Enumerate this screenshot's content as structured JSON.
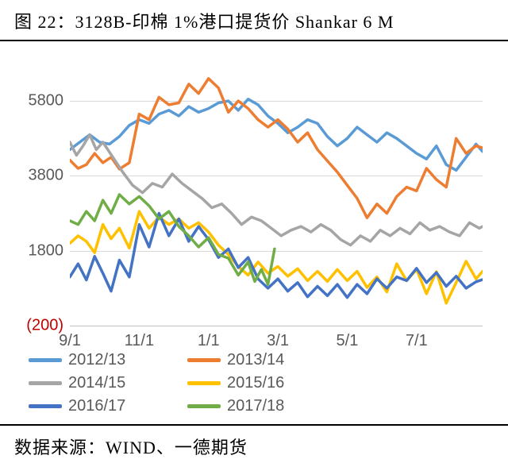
{
  "title": "图 22：3128B-印棉 1%港口提货价 Shankar 6 M",
  "source": "数据来源：WIND、一德期货",
  "chart": {
    "type": "line",
    "background_color": "#ffffff",
    "grid_color": "#d9d9d9",
    "axis_color": "#bfbfbf",
    "tick_fontsize": 20,
    "tick_color": "#595959",
    "neg_color": "#c00000",
    "line_width": 3.5,
    "ylim": [
      -200,
      6800
    ],
    "yticks": [
      {
        "v": -200,
        "label": "(200)",
        "neg": true
      },
      {
        "v": 1800,
        "label": "1800"
      },
      {
        "v": 3800,
        "label": "3800"
      },
      {
        "v": 5800,
        "label": "5800"
      }
    ],
    "xlim": [
      0,
      250
    ],
    "xticks": [
      {
        "v": 0,
        "label": "9/1"
      },
      {
        "v": 42,
        "label": "11/1"
      },
      {
        "v": 84,
        "label": "1/1"
      },
      {
        "v": 126,
        "label": "3/1"
      },
      {
        "v": 168,
        "label": "5/1"
      },
      {
        "v": 210,
        "label": "7/1"
      }
    ],
    "series": [
      {
        "name": "2012/13",
        "color": "#5b9bd5",
        "data": [
          [
            0,
            4500
          ],
          [
            6,
            4700
          ],
          [
            12,
            4900
          ],
          [
            18,
            4700
          ],
          [
            24,
            4650
          ],
          [
            30,
            4850
          ],
          [
            36,
            5150
          ],
          [
            42,
            5300
          ],
          [
            48,
            5200
          ],
          [
            54,
            5450
          ],
          [
            60,
            5550
          ],
          [
            66,
            5400
          ],
          [
            72,
            5650
          ],
          [
            78,
            5500
          ],
          [
            84,
            5600
          ],
          [
            90,
            5750
          ],
          [
            96,
            5800
          ],
          [
            102,
            5550
          ],
          [
            108,
            5850
          ],
          [
            114,
            5700
          ],
          [
            120,
            5400
          ],
          [
            126,
            5200
          ],
          [
            132,
            4950
          ],
          [
            138,
            5100
          ],
          [
            144,
            5300
          ],
          [
            150,
            5200
          ],
          [
            156,
            4850
          ],
          [
            162,
            4600
          ],
          [
            168,
            4800
          ],
          [
            174,
            5100
          ],
          [
            180,
            4900
          ],
          [
            186,
            4700
          ],
          [
            192,
            4950
          ],
          [
            198,
            4800
          ],
          [
            204,
            4600
          ],
          [
            210,
            4400
          ],
          [
            216,
            4250
          ],
          [
            222,
            4600
          ],
          [
            228,
            4100
          ],
          [
            234,
            3950
          ],
          [
            240,
            4300
          ],
          [
            246,
            4650
          ],
          [
            250,
            4450
          ]
        ]
      },
      {
        "name": "2013/14",
        "color": "#ed7d31",
        "data": [
          [
            0,
            4220
          ],
          [
            5,
            4000
          ],
          [
            10,
            4100
          ],
          [
            15,
            4400
          ],
          [
            20,
            4150
          ],
          [
            25,
            4300
          ],
          [
            30,
            3980
          ],
          [
            36,
            4150
          ],
          [
            42,
            5450
          ],
          [
            48,
            5300
          ],
          [
            54,
            5900
          ],
          [
            60,
            5700
          ],
          [
            66,
            5750
          ],
          [
            72,
            6250
          ],
          [
            78,
            6000
          ],
          [
            84,
            6400
          ],
          [
            90,
            6150
          ],
          [
            96,
            5500
          ],
          [
            102,
            5800
          ],
          [
            108,
            5600
          ],
          [
            114,
            5300
          ],
          [
            120,
            5100
          ],
          [
            126,
            5300
          ],
          [
            132,
            5050
          ],
          [
            138,
            4700
          ],
          [
            144,
            4950
          ],
          [
            150,
            4500
          ],
          [
            156,
            4200
          ],
          [
            162,
            3900
          ],
          [
            168,
            3550
          ],
          [
            174,
            3200
          ],
          [
            180,
            2680
          ],
          [
            186,
            3050
          ],
          [
            192,
            2800
          ],
          [
            198,
            3250
          ],
          [
            204,
            3500
          ],
          [
            210,
            3400
          ],
          [
            216,
            4000
          ],
          [
            222,
            3700
          ],
          [
            228,
            3500
          ],
          [
            234,
            4800
          ],
          [
            240,
            4400
          ],
          [
            246,
            4600
          ],
          [
            250,
            4550
          ]
        ]
      },
      {
        "name": "2014/15",
        "color": "#a5a5a5",
        "data": [
          [
            0,
            4700
          ],
          [
            4,
            4350
          ],
          [
            8,
            4600
          ],
          [
            12,
            4900
          ],
          [
            16,
            4500
          ],
          [
            20,
            4700
          ],
          [
            26,
            4300
          ],
          [
            32,
            3900
          ],
          [
            38,
            3550
          ],
          [
            44,
            3350
          ],
          [
            50,
            3600
          ],
          [
            56,
            3500
          ],
          [
            62,
            3850
          ],
          [
            68,
            3600
          ],
          [
            74,
            3400
          ],
          [
            80,
            3200
          ],
          [
            86,
            2950
          ],
          [
            92,
            3050
          ],
          [
            98,
            2800
          ],
          [
            104,
            2500
          ],
          [
            110,
            2700
          ],
          [
            116,
            2600
          ],
          [
            122,
            2400
          ],
          [
            128,
            2200
          ],
          [
            134,
            2350
          ],
          [
            140,
            2450
          ],
          [
            146,
            2300
          ],
          [
            152,
            2500
          ],
          [
            158,
            2350
          ],
          [
            164,
            2100
          ],
          [
            170,
            1950
          ],
          [
            176,
            2200
          ],
          [
            182,
            2050
          ],
          [
            188,
            2350
          ],
          [
            194,
            2200
          ],
          [
            200,
            2400
          ],
          [
            206,
            2250
          ],
          [
            212,
            2550
          ],
          [
            218,
            2350
          ],
          [
            224,
            2450
          ],
          [
            230,
            2300
          ],
          [
            236,
            2200
          ],
          [
            242,
            2550
          ],
          [
            248,
            2400
          ],
          [
            250,
            2450
          ]
        ]
      },
      {
        "name": "2015/16",
        "color": "#ffc000",
        "data": [
          [
            0,
            2000
          ],
          [
            5,
            2200
          ],
          [
            10,
            2050
          ],
          [
            15,
            1750
          ],
          [
            20,
            2500
          ],
          [
            25,
            2120
          ],
          [
            30,
            2400
          ],
          [
            36,
            1870
          ],
          [
            42,
            2850
          ],
          [
            48,
            2400
          ],
          [
            54,
            2700
          ],
          [
            60,
            2500
          ],
          [
            66,
            2650
          ],
          [
            72,
            2400
          ],
          [
            78,
            2550
          ],
          [
            84,
            2300
          ],
          [
            90,
            1950
          ],
          [
            96,
            1700
          ],
          [
            102,
            1380
          ],
          [
            108,
            1150
          ],
          [
            114,
            1500
          ],
          [
            120,
            1200
          ],
          [
            126,
            1380
          ],
          [
            132,
            1120
          ],
          [
            138,
            1320
          ],
          [
            144,
            1000
          ],
          [
            150,
            1250
          ],
          [
            156,
            980
          ],
          [
            162,
            1300
          ],
          [
            168,
            1000
          ],
          [
            174,
            1250
          ],
          [
            180,
            820
          ],
          [
            186,
            1100
          ],
          [
            192,
            700
          ],
          [
            198,
            1450
          ],
          [
            204,
            1000
          ],
          [
            210,
            1300
          ],
          [
            216,
            650
          ],
          [
            222,
            1240
          ],
          [
            228,
            400
          ],
          [
            234,
            950
          ],
          [
            240,
            1520
          ],
          [
            246,
            1050
          ],
          [
            250,
            1250
          ]
        ]
      },
      {
        "name": "2016/17",
        "color": "#4472c4",
        "data": [
          [
            0,
            1100
          ],
          [
            5,
            1450
          ],
          [
            10,
            1020
          ],
          [
            15,
            1650
          ],
          [
            20,
            1200
          ],
          [
            25,
            720
          ],
          [
            30,
            1550
          ],
          [
            36,
            1100
          ],
          [
            42,
            2500
          ],
          [
            48,
            1900
          ],
          [
            54,
            2800
          ],
          [
            60,
            2200
          ],
          [
            66,
            2650
          ],
          [
            72,
            2050
          ],
          [
            78,
            2450
          ],
          [
            84,
            2100
          ],
          [
            90,
            1620
          ],
          [
            96,
            1850
          ],
          [
            102,
            1350
          ],
          [
            108,
            1620
          ],
          [
            114,
            1050
          ],
          [
            120,
            800
          ],
          [
            126,
            1050
          ],
          [
            132,
            720
          ],
          [
            138,
            950
          ],
          [
            144,
            570
          ],
          [
            150,
            850
          ],
          [
            156,
            600
          ],
          [
            162,
            900
          ],
          [
            168,
            550
          ],
          [
            174,
            900
          ],
          [
            180,
            650
          ],
          [
            186,
            1050
          ],
          [
            192,
            800
          ],
          [
            198,
            1100
          ],
          [
            204,
            1000
          ],
          [
            210,
            1330
          ],
          [
            216,
            950
          ],
          [
            222,
            1220
          ],
          [
            228,
            850
          ],
          [
            234,
            1120
          ],
          [
            240,
            800
          ],
          [
            246,
            970
          ],
          [
            250,
            1030
          ]
        ]
      },
      {
        "name": "2017/18",
        "color": "#70ad47",
        "data": [
          [
            0,
            2600
          ],
          [
            5,
            2500
          ],
          [
            10,
            2850
          ],
          [
            15,
            2600
          ],
          [
            20,
            3150
          ],
          [
            25,
            2800
          ],
          [
            30,
            3300
          ],
          [
            36,
            3050
          ],
          [
            42,
            3250
          ],
          [
            48,
            3000
          ],
          [
            54,
            2650
          ],
          [
            60,
            2850
          ],
          [
            66,
            2450
          ],
          [
            72,
            2200
          ],
          [
            78,
            1900
          ],
          [
            84,
            2150
          ],
          [
            90,
            1700
          ],
          [
            96,
            1600
          ],
          [
            102,
            1150
          ],
          [
            108,
            1500
          ],
          [
            112,
            980
          ],
          [
            116,
            1300
          ],
          [
            120,
            900
          ],
          [
            124,
            1850
          ]
        ]
      }
    ]
  },
  "legend_fontsize": 20
}
